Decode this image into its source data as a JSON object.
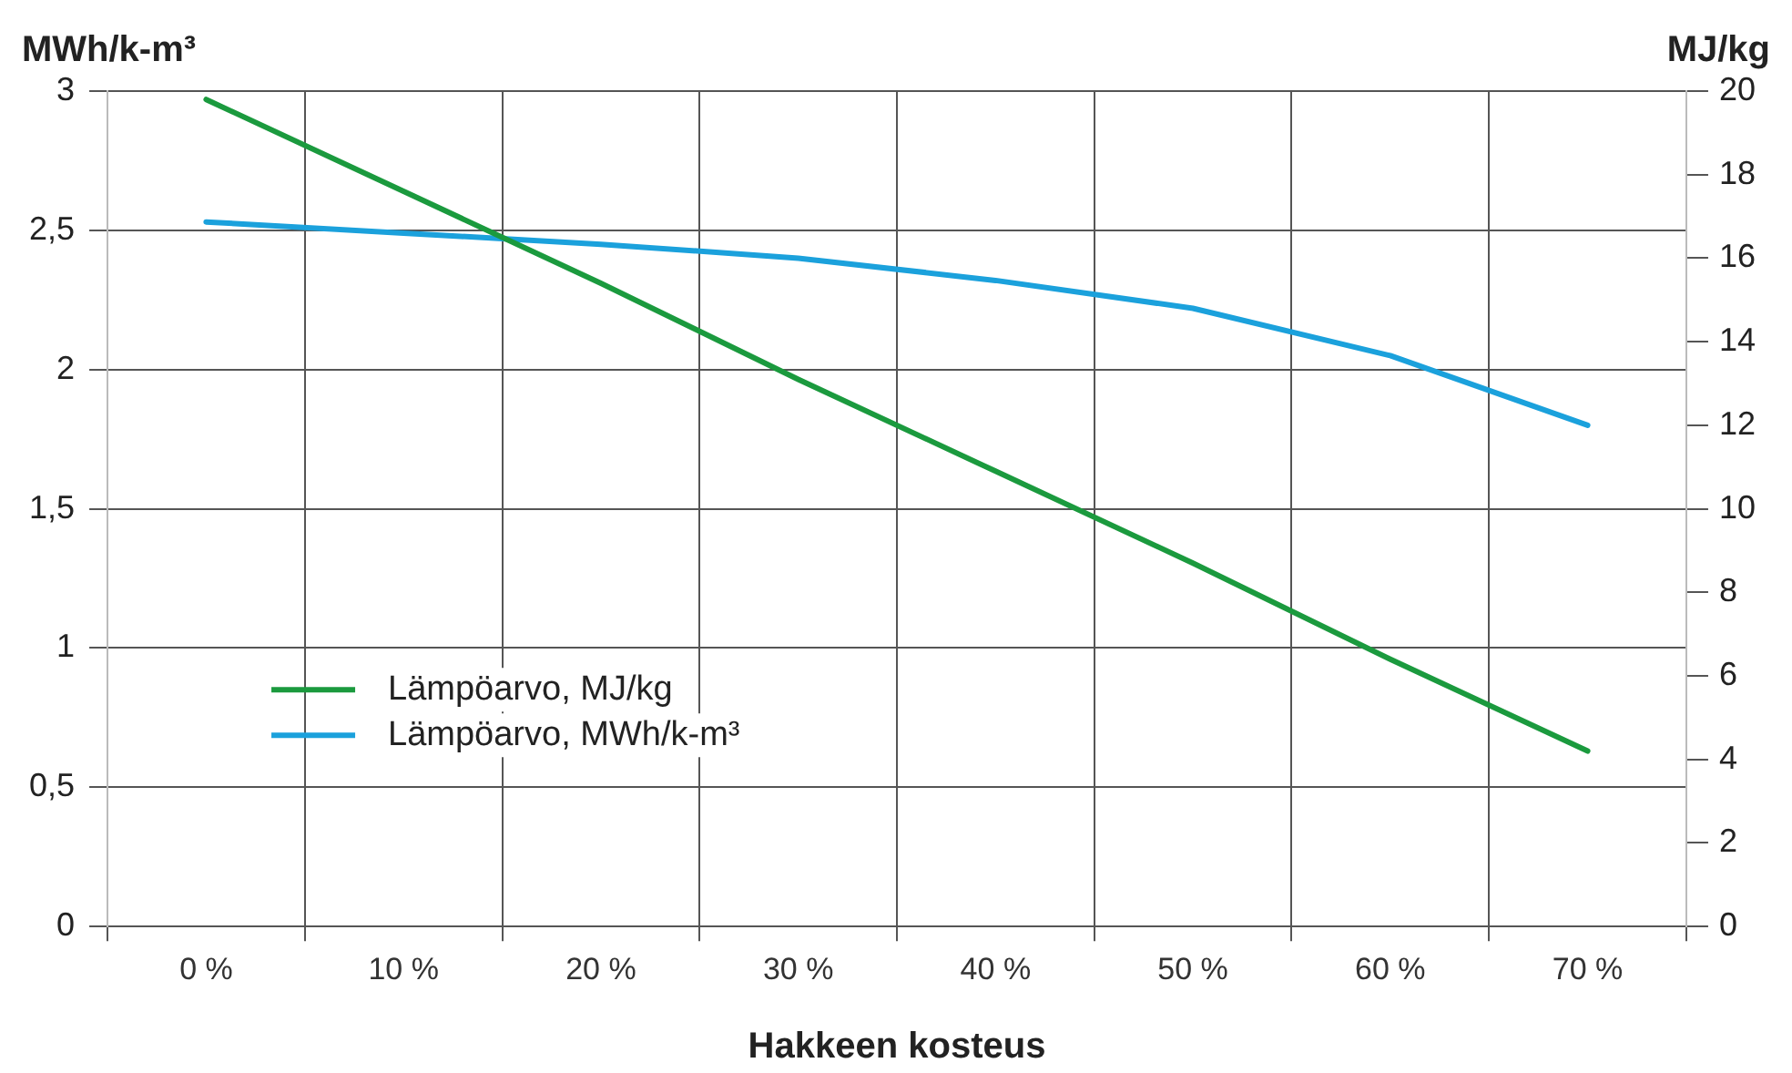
{
  "chart_data": {
    "type": "line",
    "xlabel": "Hakkeen kosteus",
    "ylabel": "MWh/k-m³",
    "y2label": "MJ/kg",
    "categories": [
      "0 %",
      "10 %",
      "20 %",
      "30 %",
      "40 %",
      "50 %",
      "60 %",
      "70 %"
    ],
    "series": [
      {
        "name": "Lämpöarvo, MJ/kg",
        "color": "#1b9a3e",
        "axis": "y2",
        "values": [
          19.8,
          17.6,
          15.4,
          13.1,
          10.9,
          8.7,
          6.4,
          4.2
        ]
      },
      {
        "name": "Lämpöarvo, MWh/k-m³",
        "color": "#1ba1dc",
        "values": [
          2.53,
          2.49,
          2.45,
          2.4,
          2.32,
          2.22,
          2.05,
          1.8
        ]
      }
    ],
    "ylim": [
      0,
      3
    ],
    "yticks": [
      0,
      {
        "value": 0.5,
        "label": "0,5"
      },
      1,
      {
        "value": 1.5,
        "label": "1,5"
      },
      2,
      {
        "value": 2.5,
        "label": "2,5"
      },
      3
    ],
    "y2lim": [
      0,
      20
    ],
    "y2ticks": [
      0,
      2,
      4,
      6,
      8,
      10,
      12,
      14,
      16,
      18,
      20
    ],
    "grid": true,
    "legend": "bottom left",
    "marker": "none",
    "line_style": "solid"
  }
}
